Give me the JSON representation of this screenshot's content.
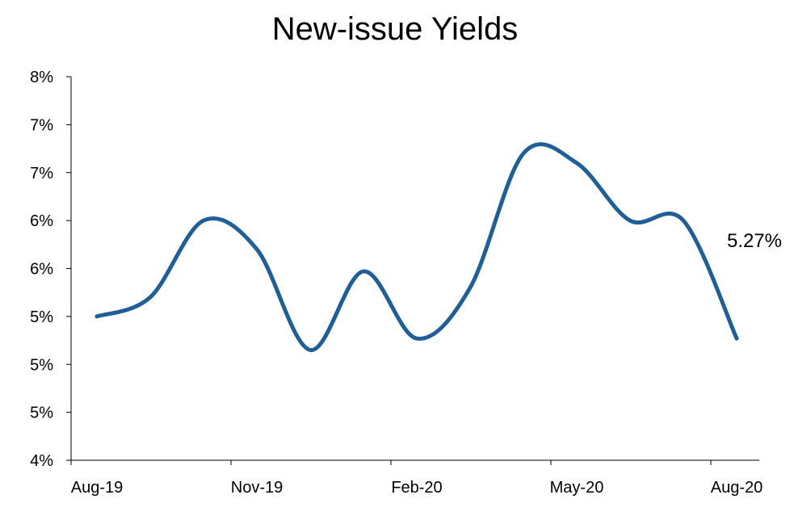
{
  "chart_data": {
    "type": "line",
    "title": "New-issue Yields",
    "xlabel": "",
    "ylabel": "",
    "x_tick_labels": [
      "Aug-19",
      "Nov-19",
      "Feb-20",
      "May-20",
      "Aug-20"
    ],
    "y_tick_labels": [
      "4%",
      "5%",
      "5%",
      "5%",
      "6%",
      "6%",
      "7%",
      "7%",
      "8%"
    ],
    "ylim": [
      4.0,
      8.0
    ],
    "grid": false,
    "legend": "none",
    "series": [
      {
        "color": "#1f5f99",
        "x": [
          "Aug-19",
          "Sep-19",
          "Oct-19",
          "Nov-19",
          "Dec-19",
          "Jan-20",
          "Feb-20",
          "Mar-20",
          "Apr-20",
          "May-20",
          "Jun-20",
          "Jul-20",
          "Aug-20"
        ],
        "values": [
          5.5,
          5.7,
          6.5,
          6.2,
          5.15,
          5.97,
          5.27,
          5.8,
          7.2,
          7.1,
          6.5,
          6.5,
          5.27
        ]
      }
    ],
    "annotations": [
      {
        "text": "5.27%",
        "x": "Aug-20",
        "y": 5.27
      }
    ]
  }
}
